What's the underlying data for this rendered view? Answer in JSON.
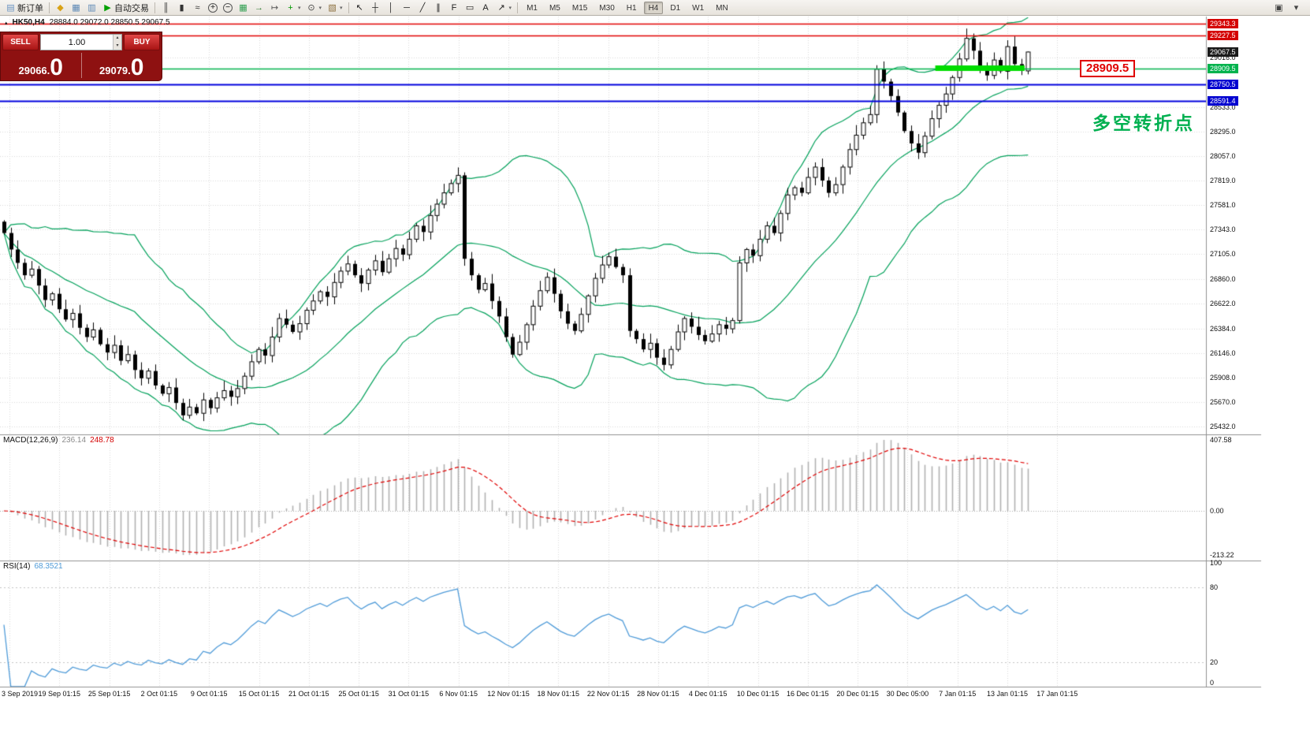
{
  "icons": {
    "dropdown": "▾",
    "spin_up": "▴",
    "spin_down": "▾",
    "info_marker": "▴"
  },
  "toolbar": {
    "items": [
      {
        "name": "new-order-button",
        "glyph": "▤",
        "glyph_color": "#6a93c3",
        "label": "新订单"
      },
      {
        "sep": true
      },
      {
        "name": "metaeditor-icon",
        "glyph": "◆",
        "glyph_color": "#d9a216"
      },
      {
        "name": "market-watch-icon",
        "glyph": "▦",
        "glyph_color": "#5b87b5"
      },
      {
        "name": "terminal-window-icon",
        "glyph": "▥",
        "glyph_color": "#5b87b5"
      },
      {
        "name": "autotrading-button",
        "glyph": "▶",
        "glyph_color": "#00a000",
        "label": "自动交易"
      },
      {
        "sep": true
      },
      {
        "name": "bar-chart-icon",
        "glyph": "║",
        "glyph_color": "#333"
      },
      {
        "name": "candlestick-chart-icon",
        "glyph": "▮",
        "glyph_color": "#333"
      },
      {
        "name": "line-chart-icon",
        "glyph": "≈",
        "glyph_color": "#333"
      },
      {
        "name": "zoom-in-icon",
        "glyph": "+",
        "circle": true
      },
      {
        "name": "zoom-out-icon",
        "glyph": "−",
        "circle": true
      },
      {
        "name": "tile-windows-icon",
        "glyph": "▦",
        "glyph_color": "#2e9e4f"
      },
      {
        "name": "auto-scroll-icon",
        "glyph": "→",
        "glyph_color": "#2e7d32"
      },
      {
        "name": "chart-shift-icon",
        "glyph": "↦",
        "glyph_color": "#555"
      },
      {
        "name": "indicators-button",
        "glyph": "+",
        "glyph_color": "#009900",
        "dropdown": true
      },
      {
        "name": "periods-button",
        "glyph": "⊙",
        "glyph_color": "#444",
        "dropdown": true
      },
      {
        "name": "templates-button",
        "glyph": "▧",
        "glyph_color": "#8a6d3b",
        "dropdown": true
      },
      {
        "sep": true
      },
      {
        "name": "cursor-icon",
        "glyph": "↖",
        "glyph_color": "#222"
      },
      {
        "name": "crosshair-icon",
        "glyph": "┼",
        "glyph_color": "#222"
      },
      {
        "name": "vertical-line-icon",
        "glyph": "│",
        "glyph_color": "#222"
      },
      {
        "name": "horizontal-line-icon",
        "glyph": "─",
        "glyph_color": "#222"
      },
      {
        "name": "trendline-icon",
        "glyph": "╱",
        "glyph_color": "#222"
      },
      {
        "name": "channel-icon",
        "glyph": "∥",
        "glyph_color": "#222"
      },
      {
        "name": "fibonacci-icon",
        "glyph": "F",
        "glyph_color": "#222"
      },
      {
        "name": "shapes-icon",
        "glyph": "▭",
        "glyph_color": "#222"
      },
      {
        "name": "text-icon",
        "glyph": "A",
        "glyph_color": "#222"
      },
      {
        "name": "arrows-icon",
        "glyph": "↗",
        "glyph_color": "#222",
        "dropdown": true
      },
      {
        "sep": true
      }
    ],
    "timeframes": [
      "M1",
      "M5",
      "M15",
      "M30",
      "H1",
      "H4",
      "D1",
      "W1",
      "MN"
    ],
    "active_timeframe": "H4",
    "right_items": [
      {
        "name": "dock-windows-icon",
        "glyph": "▣"
      },
      {
        "name": "toolbar-more-icon",
        "glyph": "▾"
      }
    ]
  },
  "info_line": {
    "symbol": "HK50,H4",
    "ohlc": "28884.0 29072.0 28850.5 29067.5"
  },
  "order_panel": {
    "sell_label": "SELL",
    "buy_label": "BUY",
    "volume": "1.00",
    "sell_price": "29066.",
    "sell_price_big": "0",
    "buy_price": "29079.",
    "buy_price_big": "0"
  },
  "annotations": {
    "note_text": "多空转折点",
    "price_tag_text": "28909.5"
  },
  "chart_data": {
    "type": "candlestick",
    "title": "HK50,H4",
    "symbol": "HK50",
    "timeframe": "H4",
    "current_bar": {
      "open": 28884.0,
      "high": 29072.0,
      "low": 28850.5,
      "close": 29067.5
    },
    "ylim": [
      25432.0,
      29358.0
    ],
    "closes": [
      27310,
      27150,
      27020,
      26900,
      26960,
      26800,
      26660,
      26720,
      26570,
      26470,
      26530,
      26390,
      26300,
      26370,
      26230,
      26150,
      26220,
      26070,
      26130,
      25980,
      25900,
      25970,
      25830,
      25750,
      25810,
      25660,
      25540,
      25620,
      25560,
      25690,
      25610,
      25710,
      25780,
      25720,
      25800,
      25920,
      26060,
      26180,
      26120,
      26300,
      26480,
      26420,
      26350,
      26430,
      26560,
      26650,
      26740,
      26690,
      26830,
      26940,
      27010,
      26900,
      26820,
      26950,
      27040,
      26930,
      27060,
      27160,
      27100,
      27250,
      27380,
      27320,
      27480,
      27590,
      27700,
      27790,
      27870,
      27060,
      26900,
      26760,
      26820,
      26650,
      26500,
      26300,
      26130,
      26250,
      26420,
      26600,
      26750,
      26880,
      26720,
      26550,
      26430,
      26360,
      26520,
      26700,
      26870,
      27000,
      27080,
      26980,
      26900,
      26360,
      26280,
      26180,
      26240,
      26100,
      26030,
      26180,
      26350,
      26480,
      26400,
      26320,
      26260,
      26330,
      26420,
      26380,
      26460,
      27020,
      27150,
      27090,
      27250,
      27380,
      27310,
      27500,
      27680,
      27750,
      27700,
      27850,
      27950,
      27820,
      27700,
      27780,
      27950,
      28120,
      28260,
      28380,
      28460,
      28900,
      28780,
      28640,
      28480,
      28300,
      28180,
      28090,
      28250,
      28420,
      28550,
      28660,
      28820,
      29000,
      29200,
      29080,
      28930,
      28840,
      28990,
      28880,
      29120,
      28950,
      28890,
      29067.5
    ],
    "bollinger": {
      "period": 20,
      "deviation": 2,
      "color": "#00a05a"
    },
    "hlines": [
      {
        "price": 29343.3,
        "color": "#e00000",
        "width": 1.5
      },
      {
        "price": 29227.5,
        "color": "#e00000",
        "width": 1.5
      },
      {
        "price": 28909.5,
        "color": "#00b34d",
        "width": 1.5
      },
      {
        "price": 28750.5,
        "color": "#0000dd",
        "width": 2
      },
      {
        "price": 28591.4,
        "color": "#0000dd",
        "width": 2
      }
    ],
    "highlight_segment": {
      "price": 28909.5,
      "bar_start": 135.5,
      "bar_end": 148.5,
      "color": "#00dd00",
      "width": 7
    },
    "price_scale_plain": [
      "29016.0",
      "28533.0",
      "28295.0",
      "28057.0",
      "27819.0",
      "27581.0",
      "27343.0",
      "27105.0",
      "26860.0",
      "26622.0",
      "26384.0",
      "26146.0",
      "25908.0",
      "25670.0",
      "25432.0"
    ],
    "price_scale_boxes": [
      {
        "text": "29343.3",
        "bg": "#d40000"
      },
      {
        "text": "29227.5",
        "bg": "#d40000"
      },
      {
        "text": "29067.5",
        "bg": "#1a1a1a"
      },
      {
        "text": "28909.5",
        "bg": "#00b34d"
      },
      {
        "text": "28750.5",
        "bg": "#0000d0"
      },
      {
        "text": "28591.4",
        "bg": "#0000d0"
      }
    ],
    "macd": {
      "label": "MACD(12,26,9)",
      "value_main": "236.14",
      "value_signal": "248.78",
      "scale_labels": [
        "407.58",
        "0.00",
        "-213.22"
      ],
      "histogram_color": "#b0b0b0",
      "signal_color": "#e00000",
      "params": {
        "fast": 12,
        "slow": 26,
        "signal": 9
      }
    },
    "rsi": {
      "label": "RSI(14)",
      "value": "68.3521",
      "period": 14,
      "scale_labels": [
        "100",
        "80",
        "20",
        "0"
      ],
      "levels": [
        80,
        20
      ],
      "line_color": "#4f9bd8"
    },
    "dates": [
      "3 Sep 2019",
      "19 Sep 01:15",
      "25 Sep 01:15",
      "2 Oct 01:15",
      "9 Oct 01:15",
      "15 Oct 01:15",
      "21 Oct 01:15",
      "25 Oct 01:15",
      "31 Oct 01:15",
      "6 Nov 01:15",
      "12 Nov 01:15",
      "18 Nov 01:15",
      "22 Nov 01:15",
      "28 Nov 01:15",
      "4 Dec 01:15",
      "10 Dec 01:15",
      "16 Dec 01:15",
      "20 Dec 01:15",
      "30 Dec 05:00",
      "7 Jan 01:15",
      "13 Jan 01:15",
      "17 Jan 01:15"
    ]
  }
}
